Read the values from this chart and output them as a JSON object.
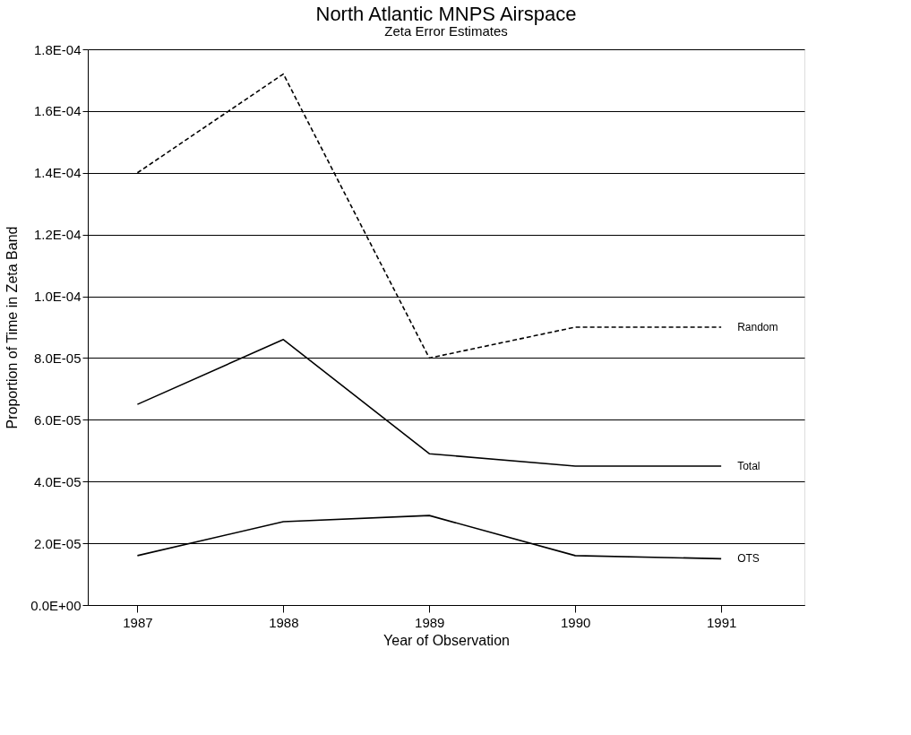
{
  "chart_data": {
    "type": "line",
    "title": "North Atlantic MNPS Airspace",
    "subtitle": "Zeta Error Estimates",
    "xlabel": "Year of Observation",
    "ylabel": "Proportion of Time in Zeta Band",
    "x": [
      1987,
      1988,
      1989,
      1990,
      1991
    ],
    "series": [
      {
        "name": "Random",
        "color": "#000000",
        "line_style": "dashed",
        "values": [
          0.00014,
          0.000172,
          8e-05,
          9e-05,
          9e-05
        ]
      },
      {
        "name": "Total",
        "color": "#000000",
        "line_style": "solid",
        "values": [
          6.5e-05,
          8.6e-05,
          4.9e-05,
          4.5e-05,
          4.5e-05
        ]
      },
      {
        "name": "OTS",
        "color": "#000000",
        "line_style": "solid",
        "values": [
          1.6e-05,
          2.7e-05,
          2.9e-05,
          1.6e-05,
          1.5e-05
        ]
      }
    ],
    "xlim": [
      1986.66,
      1991.57
    ],
    "xticks": [
      1987,
      1988,
      1989,
      1990,
      1991
    ],
    "ylim": [
      0,
      0.00018
    ],
    "yticks": [
      {
        "value": 0,
        "label": "0.0E+00"
      },
      {
        "value": 2e-05,
        "label": "2.0E-05"
      },
      {
        "value": 4e-05,
        "label": "4.0E-05"
      },
      {
        "value": 6e-05,
        "label": "6.0E-05"
      },
      {
        "value": 8e-05,
        "label": "8.0E-05"
      },
      {
        "value": 0.0001,
        "label": "1.0E-04"
      },
      {
        "value": 0.00012,
        "label": "1.2E-04"
      },
      {
        "value": 0.00014,
        "label": "1.4E-04"
      },
      {
        "value": 0.00016,
        "label": "1.6E-04"
      },
      {
        "value": 0.00018,
        "label": "1.8E-04"
      }
    ],
    "grid": "y",
    "legend": false
  }
}
